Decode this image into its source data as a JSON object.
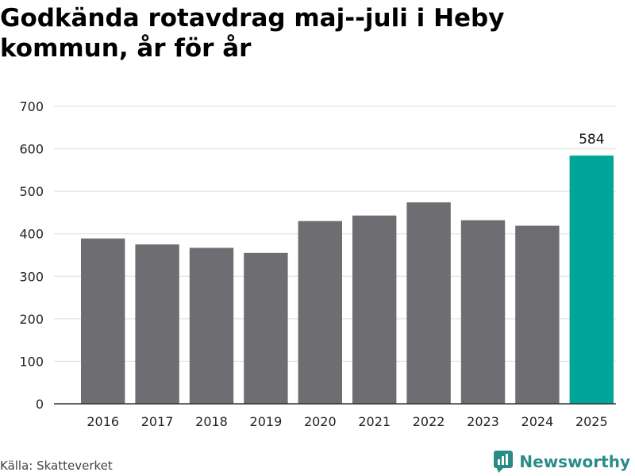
{
  "title": "Godkända rotavdrag maj--juli i Heby kommun, år för år",
  "source": "Källa: Skatteverket",
  "brand": {
    "name": "Newsworthy",
    "icon": "newsworthy-logo-icon",
    "color": "#2a8c87"
  },
  "colors": {
    "bar": "#6e6d72",
    "highlight": "#00a59a",
    "grid": "#dddddd",
    "axis": "#333333"
  },
  "chart_data": {
    "type": "bar",
    "categories": [
      "2016",
      "2017",
      "2018",
      "2019",
      "2020",
      "2021",
      "2022",
      "2023",
      "2024",
      "2025"
    ],
    "values": [
      389,
      375,
      367,
      355,
      430,
      443,
      474,
      432,
      419,
      584
    ],
    "highlight_index": 9,
    "data_labels": [
      {
        "index": 9,
        "text": "584"
      }
    ],
    "yticks": [
      0,
      100,
      200,
      300,
      400,
      500,
      600,
      700
    ],
    "ylim": [
      0,
      700
    ],
    "title": "Godkända rotavdrag maj--juli i Heby kommun, år för år",
    "xlabel": "",
    "ylabel": "",
    "grid": true,
    "legend": "none"
  }
}
